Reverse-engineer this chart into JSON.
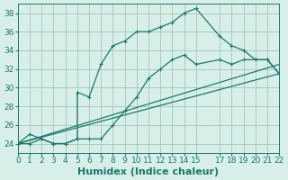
{
  "bg_color": "#d8eee8",
  "grid_color": "#a0c8b8",
  "line_color": "#1a7a6a",
  "marker_color": "#1a7a6a",
  "xlabel": "Humidex (Indice chaleur)",
  "xlabel_fontsize": 8,
  "tick_fontsize": 6.5,
  "xlim": [
    0,
    22
  ],
  "ylim": [
    23,
    39
  ],
  "yticks": [
    24,
    26,
    28,
    30,
    32,
    34,
    36,
    38
  ],
  "xticks": [
    0,
    1,
    2,
    3,
    4,
    5,
    6,
    7,
    8,
    9,
    10,
    11,
    12,
    13,
    14,
    15,
    17,
    18,
    19,
    20,
    21,
    22
  ],
  "curve1_x": [
    0,
    1,
    2,
    3,
    4,
    5,
    5,
    6,
    7,
    8,
    9,
    10,
    11,
    12,
    13,
    14,
    15,
    17,
    18,
    19,
    20,
    21,
    22
  ],
  "curve1_y": [
    24,
    25,
    24.5,
    24,
    24,
    24.5,
    29.5,
    29,
    32.5,
    34.5,
    35,
    36,
    36,
    36.5,
    37,
    38,
    38.5,
    35.5,
    34.5,
    34,
    33,
    33,
    31.5
  ],
  "curve2_x": [
    0,
    1,
    2,
    3,
    4,
    5,
    6,
    7,
    8,
    9,
    10,
    11,
    12,
    13,
    14,
    15,
    17,
    18,
    19,
    20,
    21,
    22
  ],
  "curve2_y": [
    24,
    24,
    24.5,
    24,
    24,
    24.5,
    24.5,
    24.5,
    26,
    27.5,
    29,
    31,
    32,
    33,
    33.5,
    32.5,
    33,
    32.5,
    33,
    33,
    33,
    31.5
  ],
  "curve3_x": [
    0,
    22
  ],
  "curve3_y": [
    24,
    31.5
  ],
  "curve4_x": [
    0,
    22
  ],
  "curve4_y": [
    24,
    32.5
  ]
}
